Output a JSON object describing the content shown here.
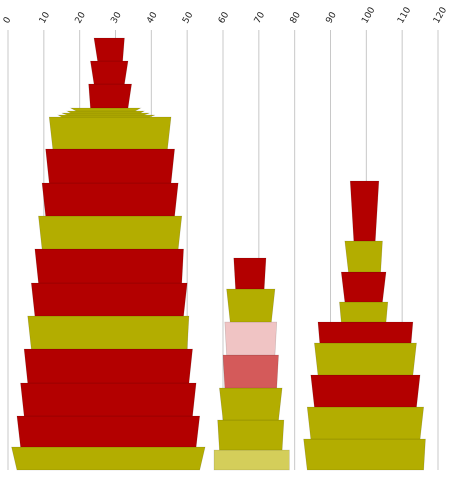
{
  "chart_data": {
    "type": "stacked-trapezoid",
    "title": "",
    "xlabel": "",
    "ylabel": "",
    "x_axis": {
      "range": [
        0,
        120
      ],
      "ticks": [
        0,
        10,
        20,
        30,
        40,
        50,
        60,
        70,
        80,
        90,
        100,
        110,
        120
      ],
      "tick_labels": [
        "0",
        "10",
        "20",
        "30",
        "40",
        "50",
        "60",
        "70",
        "80",
        "90",
        "100",
        "110",
        "120"
      ],
      "position": "top",
      "label_rotation": -60
    },
    "grid": true,
    "colors": {
      "red": "#b30000",
      "olive": "#b3ad00",
      "pink": "#f0c4c4",
      "coral": "#d45a5a",
      "light_olive": "#d4ce5a",
      "grid": "#c8c8c8"
    },
    "stacks": [
      {
        "segments": [
          {
            "bottom": [
              1,
              55
            ],
            "top": [
              2.5,
              53.5
            ],
            "color": "olive"
          },
          {
            "bottom": [
              2.5,
              53.5
            ],
            "top": [
              3.5,
              52.5
            ],
            "color": "red"
          },
          {
            "bottom": [
              3.5,
              52.5
            ],
            "top": [
              4.5,
              51.5
            ],
            "color": "red"
          },
          {
            "bottom": [
              4.5,
              51.5
            ],
            "top": [
              5.5,
              50.5
            ],
            "color": "red"
          },
          {
            "bottom": [
              5.5,
              50.5
            ],
            "top": [
              6.5,
              50
            ],
            "color": "olive"
          },
          {
            "bottom": [
              6.5,
              50
            ],
            "top": [
              7.5,
              49
            ],
            "color": "red"
          },
          {
            "bottom": [
              7.5,
              49
            ],
            "top": [
              8.5,
              48.5
            ],
            "color": "red"
          },
          {
            "bottom": [
              8.5,
              48.5
            ],
            "top": [
              9.5,
              47.5
            ],
            "color": "olive"
          },
          {
            "bottom": [
              9.5,
              47.5
            ],
            "top": [
              10.5,
              46.5
            ],
            "color": "red"
          },
          {
            "bottom": [
              10.5,
              46.5
            ],
            "top": [
              11.5,
              45.5
            ],
            "color": "red"
          },
          {
            "bottom": [
              11.5,
              45.5
            ],
            "top": [
              12.5,
              44.5
            ],
            "color": "olive"
          },
          {
            "bottom": [
              14,
              41
            ],
            "top": [
              15,
              39.5
            ],
            "color": "olive"
          },
          {
            "bottom": [
              15,
              39.5
            ],
            "top": [
              16.5,
              38
            ],
            "color": "olive"
          },
          {
            "bottom": [
              16.5,
              38
            ],
            "top": [
              17.5,
              37
            ],
            "color": "olive"
          },
          {
            "bottom": [
              17.5,
              37
            ],
            "top": [
              19,
              35.5
            ],
            "color": "olive"
          },
          {
            "bottom": [
              22.5,
              34.5
            ],
            "top": [
              23,
              33.5
            ],
            "color": "red"
          },
          {
            "bottom": [
              23,
              33.5
            ],
            "top": [
              24,
              32.5
            ],
            "color": "red"
          },
          {
            "bottom": [
              24,
              32.5
            ],
            "top": [
              25,
              32
            ],
            "color": "red"
          }
        ]
      },
      {
        "segments": [
          {
            "bottom": [
              57.5,
              78.5
            ],
            "top": [
              57.5,
              78.5
            ],
            "color": "light_olive"
          },
          {
            "bottom": [
              58.5,
              77
            ],
            "top": [
              59,
              76.5
            ],
            "color": "olive"
          },
          {
            "bottom": [
              59,
              76.5
            ],
            "top": [
              60,
              75.5
            ],
            "color": "olive"
          },
          {
            "bottom": [
              60,
              75.5
            ],
            "top": [
              60.5,
              75
            ],
            "color": "coral"
          },
          {
            "bottom": [
              60.5,
              75
            ],
            "top": [
              61,
              74.5
            ],
            "color": "pink"
          },
          {
            "bottom": [
              61,
              74.5
            ],
            "top": [
              62,
              73.5
            ],
            "color": "olive"
          },
          {
            "bottom": [
              63,
              72
            ],
            "top": [
              63.5,
              71.5
            ],
            "color": "red"
          }
        ]
      },
      {
        "segments": [
          {
            "bottom": [
              82.5,
              116.5
            ],
            "top": [
              83.5,
              116
            ],
            "color": "olive"
          },
          {
            "bottom": [
              83.5,
              116
            ],
            "top": [
              84.5,
              115
            ],
            "color": "olive"
          },
          {
            "bottom": [
              84.5,
              115
            ],
            "top": [
              85.5,
              114
            ],
            "color": "red"
          },
          {
            "bottom": [
              85.5,
              114
            ],
            "top": [
              86.5,
              113
            ],
            "color": "olive"
          },
          {
            "bottom": [
              86.5,
              113
            ],
            "top": [
              87,
              112.5
            ],
            "color": "red"
          },
          {
            "bottom": [
              92.5,
              106
            ],
            "top": [
              93,
              105.5
            ],
            "color": "olive"
          },
          {
            "bottom": [
              93,
              105.5
            ],
            "top": [
              94,
              104.5
            ],
            "color": "red"
          },
          {
            "bottom": [
              94,
              104.5
            ],
            "top": [
              95,
              104
            ],
            "color": "olive"
          },
          {
            "bottom": [
              95.5,
              103.5
            ],
            "top": [
              96.5,
              102.5
            ],
            "color": "red"
          }
        ]
      }
    ]
  }
}
